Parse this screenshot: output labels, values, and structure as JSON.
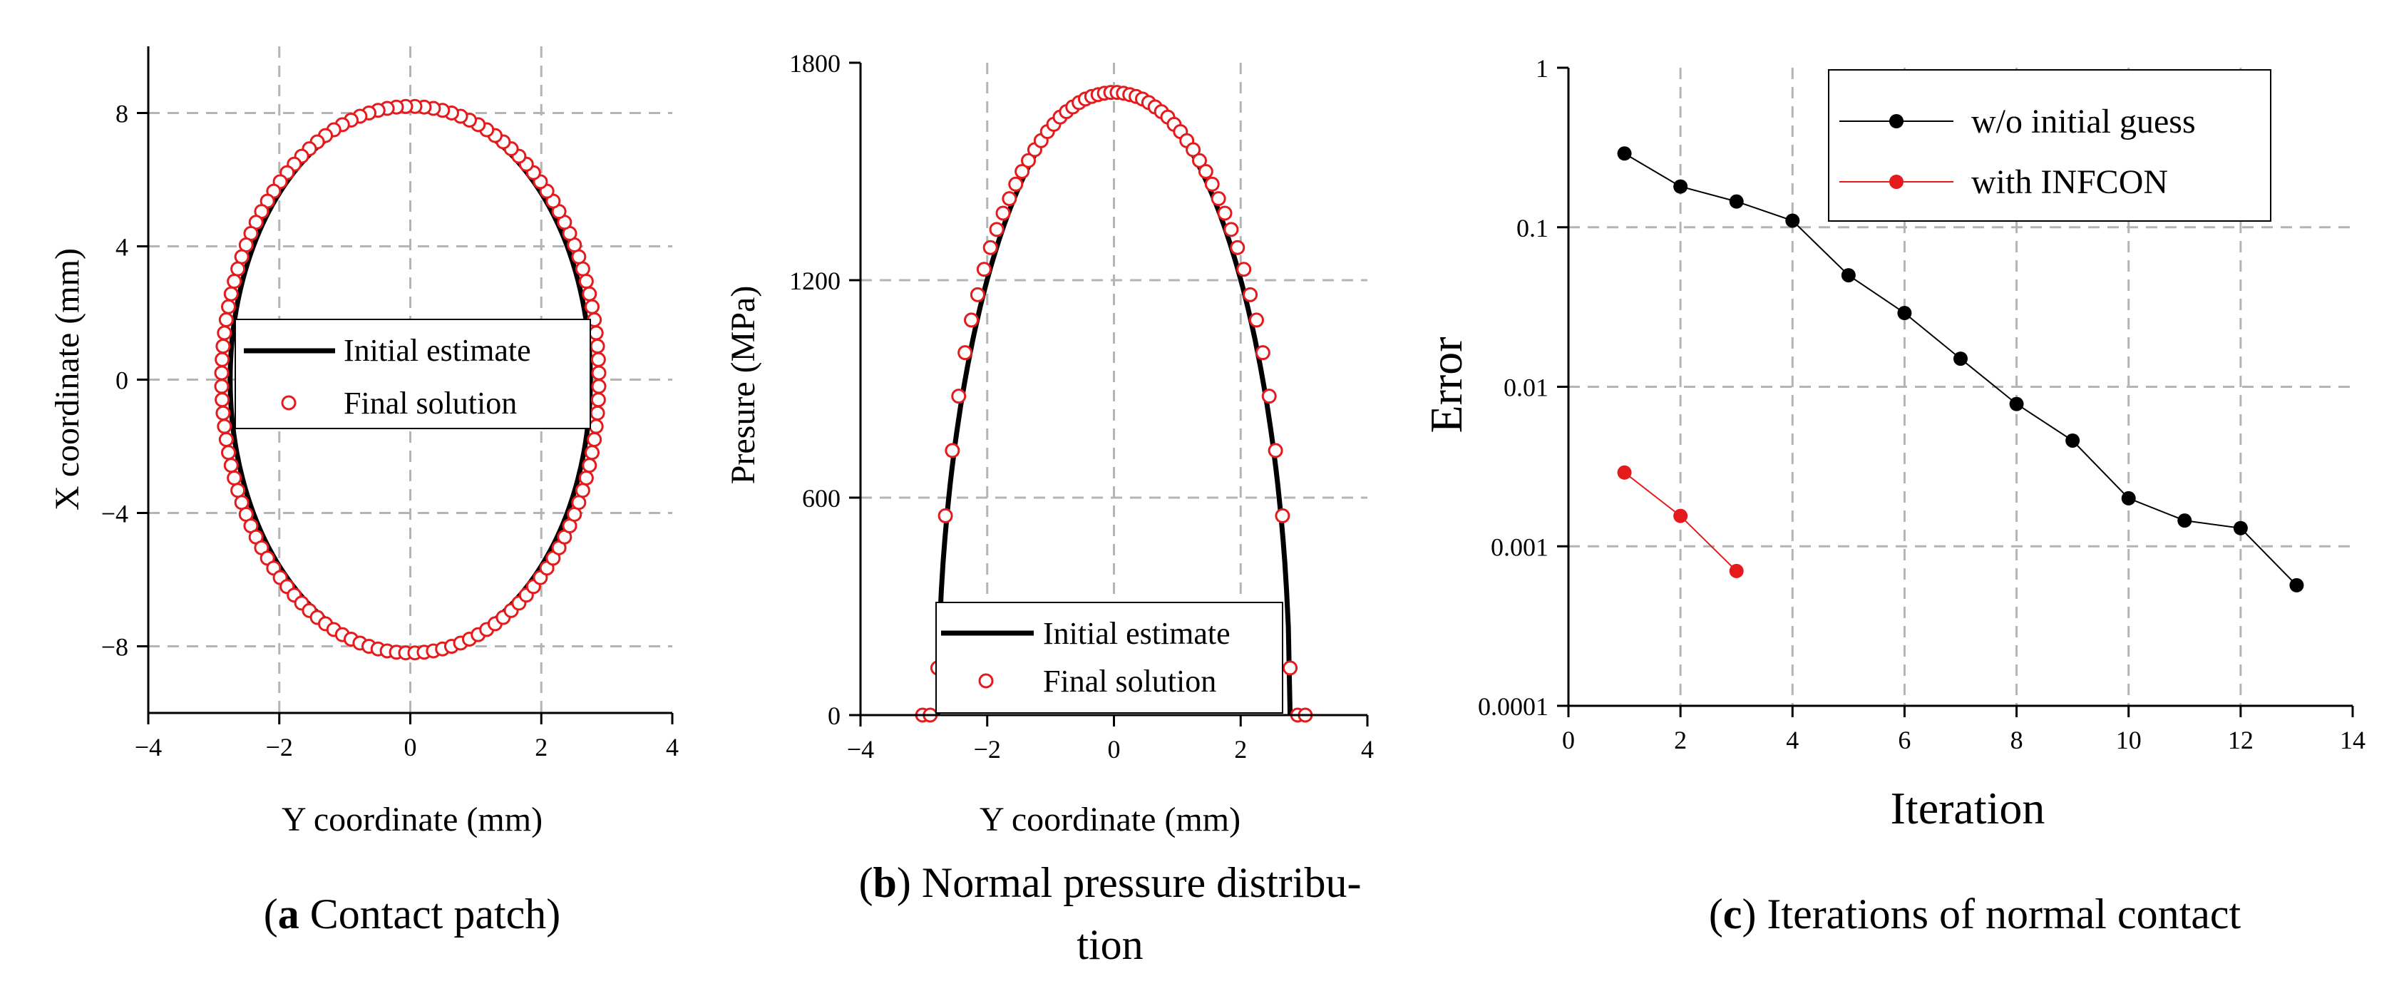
{
  "colors": {
    "black": "#000000",
    "red": "#e41a1c",
    "grid": "#b4b4b4"
  },
  "panels": {
    "a": {
      "caption_letter": "a",
      "caption_text": " Contact patch"
    },
    "b": {
      "caption_letter": "b",
      "caption_line1": " Normal pressure distribu-",
      "caption_line2": "tion"
    },
    "c": {
      "caption_letter": "c",
      "caption_text": " Iterations of normal contact"
    }
  },
  "chart_data": [
    {
      "id": "a",
      "type": "scatter",
      "title": "",
      "xlabel": "Y coordinate (mm)",
      "ylabel": "X coordinate (mm)",
      "xlim": [
        -4,
        4
      ],
      "ylim": [
        -10,
        10
      ],
      "xticks": [
        -4,
        -2,
        0,
        2,
        4
      ],
      "xtick_labels": [
        "−4",
        "−2",
        "0",
        "2",
        "4"
      ],
      "yticks": [
        -8,
        -4,
        0,
        4,
        8
      ],
      "ytick_labels": [
        "−8",
        "−4",
        "0",
        "4",
        "8"
      ],
      "grid": true,
      "legend_position": "center",
      "series": [
        {
          "name": "Initial estimate",
          "kind": "line",
          "shape": "ellipse",
          "semi_axis_y": 2.75,
          "semi_axis_x": 8.15
        },
        {
          "name": "Final solution",
          "kind": "markers",
          "shape": "ellipse",
          "semi_axis_y": 2.88,
          "semi_axis_x": 8.2,
          "points": 128
        }
      ]
    },
    {
      "id": "b",
      "type": "line",
      "title": "",
      "xlabel": "Y coordinate (mm)",
      "ylabel": "Presure (MPa)",
      "xlim": [
        -4,
        4
      ],
      "ylim": [
        0,
        1800
      ],
      "xticks": [
        -4,
        -2,
        0,
        2,
        4
      ],
      "xtick_labels": [
        "−4",
        "−2",
        "0",
        "2",
        "4"
      ],
      "yticks": [
        0,
        600,
        1200,
        1800
      ],
      "ytick_labels": [
        "0",
        "600",
        "1200",
        "1800"
      ],
      "grid": true,
      "legend_position": "bottom-center",
      "series": [
        {
          "name": "Initial estimate",
          "kind": "line",
          "shape": "semi-ellipse",
          "peak": 1730,
          "half_width": 2.78
        },
        {
          "name": "Final solution",
          "kind": "markers",
          "x": [
            -3.02,
            -2.9,
            -2.78,
            -2.66,
            -2.55,
            -2.45,
            -2.35,
            -2.25,
            -2.15,
            -2.05,
            -1.95,
            -1.85,
            -1.75,
            -1.65,
            -1.55,
            -1.45,
            -1.35,
            -1.25,
            -1.15,
            -1.05,
            -0.95,
            -0.85,
            -0.75,
            -0.65,
            -0.55,
            -0.45,
            -0.35,
            -0.25,
            -0.15,
            -0.05,
            0.05,
            0.15,
            0.25,
            0.35,
            0.45,
            0.55,
            0.65,
            0.75,
            0.85,
            0.95,
            1.05,
            1.15,
            1.25,
            1.35,
            1.45,
            1.55,
            1.65,
            1.75,
            1.85,
            1.95,
            2.05,
            2.15,
            2.25,
            2.35,
            2.45,
            2.55,
            2.66,
            2.78,
            2.9,
            3.02
          ],
          "y": [
            0,
            0,
            130,
            550,
            730,
            880,
            1000,
            1090,
            1160,
            1230,
            1290,
            1340,
            1385,
            1425,
            1465,
            1500,
            1530,
            1560,
            1585,
            1610,
            1630,
            1650,
            1665,
            1678,
            1690,
            1700,
            1707,
            1712,
            1716,
            1718,
            1718,
            1716,
            1712,
            1707,
            1700,
            1690,
            1678,
            1665,
            1650,
            1630,
            1610,
            1585,
            1560,
            1530,
            1500,
            1465,
            1425,
            1385,
            1340,
            1290,
            1230,
            1160,
            1090,
            1000,
            880,
            730,
            550,
            130,
            0,
            0
          ]
        }
      ]
    },
    {
      "id": "c",
      "type": "line",
      "title": "",
      "xlabel": "Iteration",
      "ylabel": "Error",
      "xscale": "linear",
      "yscale": "log",
      "xlim": [
        0,
        14
      ],
      "ylim": [
        0.0001,
        1
      ],
      "xticks": [
        0,
        2,
        4,
        6,
        8,
        10,
        12,
        14
      ],
      "xtick_labels": [
        "0",
        "2",
        "4",
        "6",
        "8",
        "10",
        "12",
        "14"
      ],
      "yticks": [
        0.0001,
        0.001,
        0.01,
        0.1,
        1
      ],
      "ytick_labels": [
        "0.0001",
        "0.001",
        "0.01",
        "0.1",
        "1"
      ],
      "grid": true,
      "legend_position": "top-right",
      "series": [
        {
          "name": "w/o initial guess",
          "color": "#000000",
          "x": [
            1,
            2,
            3,
            4,
            5,
            6,
            7,
            8,
            9,
            10,
            11,
            12,
            13
          ],
          "y": [
            0.29,
            0.18,
            0.145,
            0.11,
            0.05,
            0.029,
            0.015,
            0.0078,
            0.0046,
            0.002,
            0.00145,
            0.0013,
            0.00057
          ]
        },
        {
          "name": "with INFCON",
          "color": "#e41a1c",
          "x": [
            1,
            2,
            3
          ],
          "y": [
            0.0029,
            0.00155,
            0.0007
          ]
        }
      ]
    }
  ]
}
